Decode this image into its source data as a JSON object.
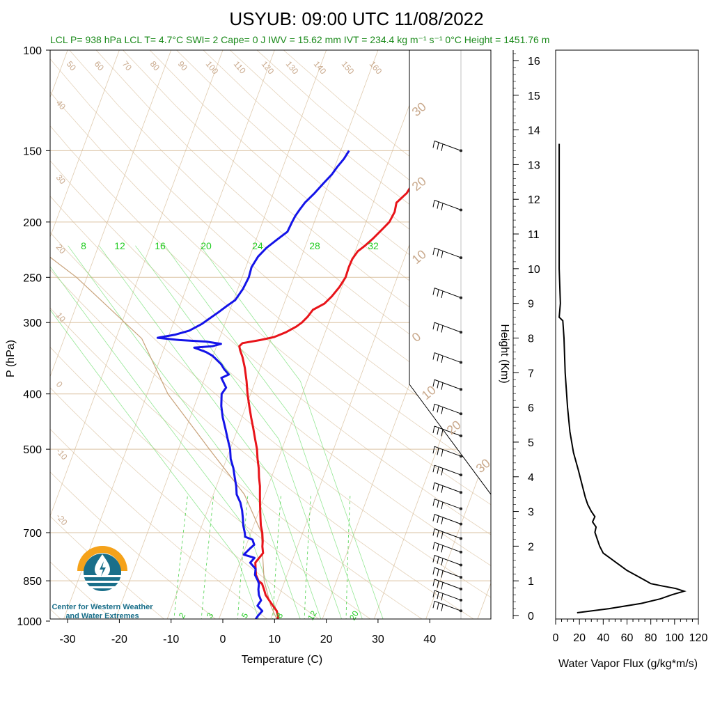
{
  "title": "USYUB: 09:00 UTC 11/08/2022",
  "info_line": "LCL P= 938 hPa  LCL T= 4.7°C  SWI= 2  Cape= 0 J  IWV = 15.62 mm  IVT = 234.4 kg m⁻¹ s⁻¹  0°C Height = 1451.76 m",
  "logo": {
    "line1": "Center for Western Weather",
    "line2": "and Water Extremes"
  },
  "colors": {
    "temperature": "#e8141a",
    "dewpoint": "#1414e8",
    "isotherm": "#d2b48c",
    "mixing_ratio": "#33cc33",
    "flux": "#000000"
  },
  "chart_data": [
    {
      "type": "line",
      "name": "skew-t",
      "xlabel": "Temperature (C)",
      "ylabel": "P (hPa)",
      "x_ticks": [
        -30,
        -20,
        -10,
        0,
        10,
        20,
        30,
        40
      ],
      "xlim": [
        -33,
        52
      ],
      "y_ticks": [
        100,
        150,
        200,
        250,
        300,
        400,
        500,
        700,
        850,
        1000
      ],
      "y_scale": "log",
      "ylim": [
        1050,
        100
      ],
      "isotherm_labels": [
        "50",
        "60",
        "70",
        "80",
        "90",
        "100",
        "110",
        "120",
        "130",
        "140",
        "150",
        "160",
        "40",
        "30",
        "20",
        "10",
        "0",
        "-10",
        "-20"
      ],
      "right_labels": [
        "30",
        "20",
        "10",
        "0",
        "10",
        "20",
        "30"
      ],
      "mixing_ratio_labels": [
        "8",
        "12",
        "16",
        "20",
        "24",
        "28",
        "32"
      ],
      "mixing_ratio_bottom_labels": [
        "2",
        "3",
        "5",
        "8",
        "12",
        "20"
      ],
      "series": [
        {
          "name": "Temperature",
          "points": [
            [
              11.5,
              1000
            ],
            [
              11.2,
              980
            ],
            [
              10.6,
              960
            ],
            [
              9.5,
              940
            ],
            [
              8.4,
              920
            ],
            [
              7.3,
              900
            ],
            [
              6.6,
              880
            ],
            [
              5.8,
              860
            ],
            [
              4.9,
              850
            ],
            [
              4.0,
              830
            ],
            [
              3.5,
              810
            ],
            [
              3.0,
              790
            ],
            [
              3.8,
              760
            ],
            [
              3.2,
              740
            ],
            [
              2.9,
              725
            ],
            [
              2.2,
              700
            ],
            [
              1.4,
              680
            ],
            [
              0.8,
              660
            ],
            [
              0.2,
              640
            ],
            [
              -0.4,
              620
            ],
            [
              -1.0,
              600
            ],
            [
              -1.6,
              580
            ],
            [
              -2.4,
              560
            ],
            [
              -3.1,
              540
            ],
            [
              -4.0,
              520
            ],
            [
              -4.8,
              500
            ],
            [
              -5.9,
              480
            ],
            [
              -7.0,
              460
            ],
            [
              -8.2,
              440
            ],
            [
              -9.4,
              420
            ],
            [
              -10.6,
              400
            ],
            [
              -11.7,
              380
            ],
            [
              -13.0,
              360
            ],
            [
              -14.2,
              345
            ],
            [
              -15.2,
              335
            ],
            [
              -15.6,
              330
            ],
            [
              -15.2,
              326
            ],
            [
              -12.0,
              322
            ],
            [
              -9.5,
              318
            ],
            [
              -7.6,
              312
            ],
            [
              -6.0,
              305
            ],
            [
              -5.2,
              300
            ],
            [
              -4.5,
              293
            ],
            [
              -4.0,
              285
            ],
            [
              -2.2,
              278
            ],
            [
              -1.3,
              270
            ],
            [
              -0.5,
              260
            ],
            [
              0.0,
              250
            ],
            [
              -0.1,
              240
            ],
            [
              0.0,
              232
            ],
            [
              0.5,
              225
            ],
            [
              1.5,
              220
            ],
            [
              2.5,
              214
            ],
            [
              3.8,
              205
            ],
            [
              4.5,
              200
            ],
            [
              4.8,
              192
            ],
            [
              4.5,
              185
            ],
            [
              5.8,
              178
            ],
            [
              6.2,
              172
            ],
            [
              7.0,
              166
            ],
            [
              7.5,
              160
            ],
            [
              7.6,
              155
            ],
            [
              7.8,
              150
            ]
          ]
        },
        {
          "name": "Dewpoint",
          "points": [
            [
              7.0,
              1000
            ],
            [
              7.3,
              980
            ],
            [
              7.8,
              960
            ],
            [
              6.5,
              940
            ],
            [
              6.8,
              920
            ],
            [
              6.0,
              900
            ],
            [
              5.5,
              880
            ],
            [
              5.2,
              860
            ],
            [
              4.8,
              850
            ],
            [
              3.8,
              830
            ],
            [
              3.5,
              810
            ],
            [
              2.0,
              790
            ],
            [
              2.5,
              775
            ],
            [
              0.2,
              765
            ],
            [
              1.0,
              745
            ],
            [
              1.5,
              735
            ],
            [
              0.8,
              720
            ],
            [
              -0.8,
              712
            ],
            [
              -1.2,
              700
            ],
            [
              -2.0,
              680
            ],
            [
              -2.6,
              660
            ],
            [
              -3.3,
              640
            ],
            [
              -4.2,
              620
            ],
            [
              -5.5,
              600
            ],
            [
              -6.2,
              580
            ],
            [
              -7.1,
              560
            ],
            [
              -8.0,
              540
            ],
            [
              -9.2,
              520
            ],
            [
              -10.0,
              500
            ],
            [
              -11.2,
              480
            ],
            [
              -12.4,
              460
            ],
            [
              -13.7,
              440
            ],
            [
              -14.8,
              420
            ],
            [
              -15.6,
              400
            ],
            [
              -15.2,
              390
            ],
            [
              -16.8,
              375
            ],
            [
              -15.6,
              370
            ],
            [
              -16.9,
              362
            ],
            [
              -17.8,
              355
            ],
            [
              -19.3,
              347
            ],
            [
              -20.1,
              343
            ],
            [
              -21.6,
              338
            ],
            [
              -23.3,
              334
            ],
            [
              -24.2,
              332
            ],
            [
              -20.8,
              330
            ],
            [
              -19.3,
              327
            ],
            [
              -22.3,
              324
            ],
            [
              -27.6,
              322
            ],
            [
              -32.0,
              319
            ],
            [
              -28.8,
              315
            ],
            [
              -26.4,
              310
            ],
            [
              -24.5,
              302
            ],
            [
              -23.5,
              296
            ],
            [
              -22.1,
              288
            ],
            [
              -20.8,
              280
            ],
            [
              -19.7,
              274
            ],
            [
              -19.0,
              262
            ],
            [
              -18.7,
              250
            ],
            [
              -18.9,
              240
            ],
            [
              -18.4,
              230
            ],
            [
              -17.4,
              222
            ],
            [
              -16.0,
              215
            ],
            [
              -14.5,
              208
            ],
            [
              -14.3,
              200
            ],
            [
              -14.1,
              195
            ],
            [
              -13.7,
              190
            ],
            [
              -13.2,
              185
            ],
            [
              -12.0,
              178
            ],
            [
              -11.0,
              171
            ],
            [
              -10.0,
              165
            ],
            [
              -9.5,
              160
            ],
            [
              -8.8,
              155
            ],
            [
              -8.4,
              150
            ]
          ]
        }
      ],
      "wind_barbs_count": 21
    },
    {
      "type": "line",
      "name": "water-vapor-flux",
      "xlabel": "Water Vapor Flux (g/kg*m/s)",
      "ylabel": "Height (Km)",
      "x_ticks": [
        0,
        20,
        40,
        60,
        80,
        100,
        120
      ],
      "xlim": [
        0,
        120
      ],
      "y_ticks": [
        0,
        1,
        2,
        3,
        4,
        5,
        6,
        7,
        8,
        9,
        10,
        11,
        12,
        13,
        14,
        15,
        16
      ],
      "ylim": [
        -0.1,
        16.3
      ],
      "series": [
        {
          "name": "Water Vapor Flux",
          "points": [
            [
              18,
              0.08
            ],
            [
              45,
              0.2
            ],
            [
              72,
              0.35
            ],
            [
              88,
              0.48
            ],
            [
              98,
              0.6
            ],
            [
              108,
              0.7
            ],
            [
              101,
              0.78
            ],
            [
              90,
              0.85
            ],
            [
              80,
              0.92
            ],
            [
              76,
              1.0
            ],
            [
              68,
              1.15
            ],
            [
              60,
              1.3
            ],
            [
              52,
              1.5
            ],
            [
              46,
              1.65
            ],
            [
              40,
              1.8
            ],
            [
              37,
              2.0
            ],
            [
              35,
              2.2
            ],
            [
              33,
              2.4
            ],
            [
              34,
              2.55
            ],
            [
              31,
              2.7
            ],
            [
              33,
              2.85
            ],
            [
              30,
              3.0
            ],
            [
              27,
              3.2
            ],
            [
              25,
              3.4
            ],
            [
              22,
              3.8
            ],
            [
              19,
              4.2
            ],
            [
              15,
              4.7
            ],
            [
              12,
              5.3
            ],
            [
              10,
              6.0
            ],
            [
              8,
              7.0
            ],
            [
              7,
              8.0
            ],
            [
              6,
              8.5
            ],
            [
              3,
              8.6
            ],
            [
              4,
              9.0
            ],
            [
              3,
              10.0
            ],
            [
              3,
              11.0
            ],
            [
              3,
              12.0
            ],
            [
              3,
              13.0
            ],
            [
              3,
              13.6
            ]
          ]
        }
      ]
    }
  ]
}
